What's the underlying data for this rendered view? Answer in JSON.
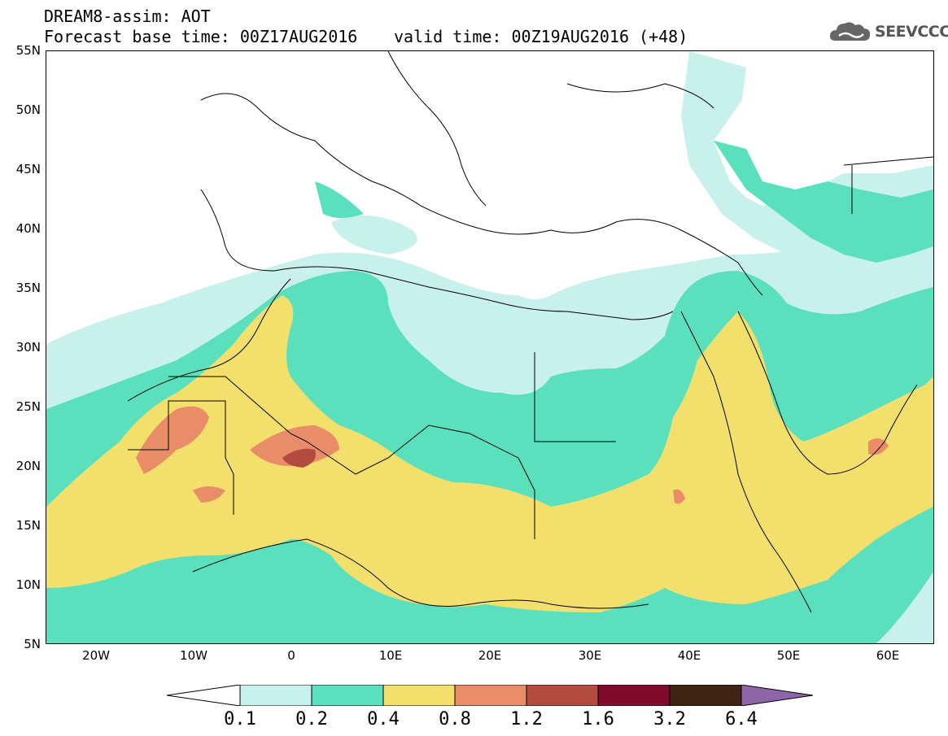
{
  "title": {
    "line1": "DREAM8-assim: AOT",
    "line2": "Forecast base time: 00Z17AUG2016",
    "valid": "valid time: 00Z19AUG2016 (+48)"
  },
  "logo": {
    "text": "SEEVCCC",
    "icon": "cloud-icon"
  },
  "axes": {
    "lat_labels": [
      "55N",
      "50N",
      "45N",
      "40N",
      "35N",
      "30N",
      "25N",
      "20N",
      "15N",
      "10N",
      "5N"
    ],
    "lon_labels": [
      "20W",
      "10W",
      "0",
      "10E",
      "20E",
      "30E",
      "40E",
      "50E",
      "60E"
    ]
  },
  "legend": {
    "labels": [
      "0.1",
      "0.2",
      "0.4",
      "0.8",
      "1.2",
      "1.6",
      "3.2",
      "6.4"
    ],
    "colors": [
      "#c8f1ec",
      "#5ae0bd",
      "#f3e06c",
      "#e88d68",
      "#b24c3f",
      "#7f0a2b",
      "#3f2414",
      "#8e65a8"
    ]
  },
  "colors": {
    "c01": "#c8f1ec",
    "c02": "#5ae0bd",
    "c04": "#f3e06c",
    "c08": "#e88d68",
    "c12": "#b24c3f",
    "border": "#000000"
  }
}
